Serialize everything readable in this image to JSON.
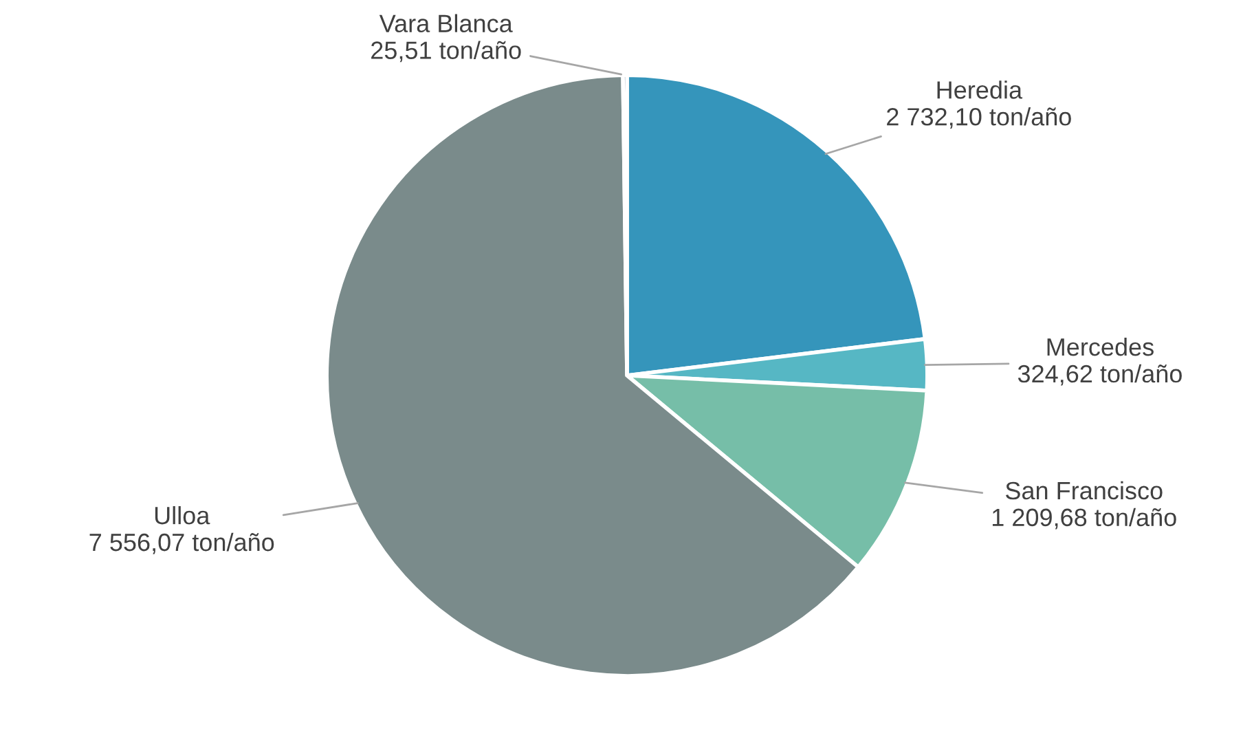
{
  "chart_data": {
    "type": "pie",
    "categories": [
      "Heredia",
      "Mercedes",
      "San Francisco",
      "Ulloa",
      "Vara Blanca"
    ],
    "values": [
      2732.1,
      324.62,
      1209.68,
      7556.07,
      25.51
    ],
    "value_labels": [
      "2 732,10 ton/año",
      "324,62 ton/año",
      "1 209,68 ton/año",
      "7 556,07 ton/año",
      "25,51 ton/año"
    ],
    "colors": [
      "#3595bb",
      "#56b7c4",
      "#76bea8",
      "#7a8b8b",
      "#4f6f8f"
    ],
    "legend": false
  }
}
